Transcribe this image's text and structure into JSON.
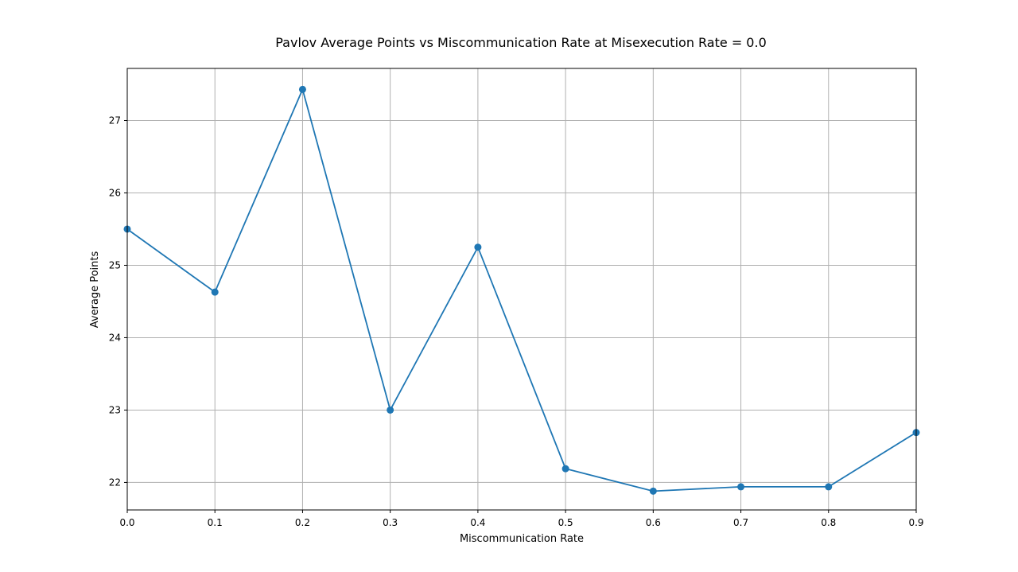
{
  "chart_data": {
    "type": "line",
    "title": "Pavlov Average Points vs Miscommunication Rate at Misexecution Rate = 0.0",
    "xlabel": "Miscommunication Rate",
    "ylabel": "Average Points",
    "x": [
      0.0,
      0.1,
      0.2,
      0.3,
      0.4,
      0.5,
      0.6,
      0.7,
      0.8,
      0.9
    ],
    "series": [
      {
        "values": [
          25.5,
          24.63,
          27.43,
          23.0,
          25.25,
          22.19,
          21.88,
          21.94,
          21.94,
          22.69
        ],
        "color": "#1f77b4",
        "marker": "circle"
      }
    ],
    "xlim": [
      0.0,
      0.9
    ],
    "ylim": [
      21.62,
      27.72
    ],
    "xticks": [
      "0.0",
      "0.1",
      "0.2",
      "0.3",
      "0.4",
      "0.5",
      "0.6",
      "0.7",
      "0.8",
      "0.9"
    ],
    "yticks": [
      "22",
      "23",
      "24",
      "25",
      "26",
      "27"
    ],
    "grid": true
  }
}
